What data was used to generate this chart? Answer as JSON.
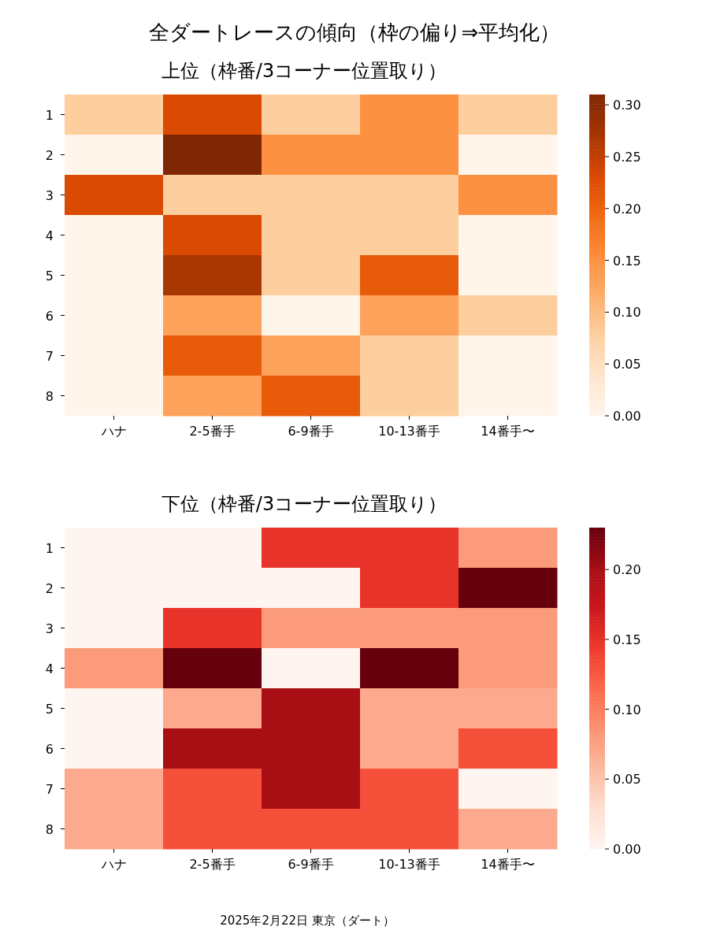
{
  "chart_data": [
    {
      "type": "heatmap",
      "title": "全ダートレースの傾向（枠の偏り⇒平均化）",
      "subtitle": "上位（枠番/3コーナー位置取り）",
      "categories": [
        "ハナ",
        "2-5番手",
        "6-9番手",
        "10-13番手",
        "14番手〜"
      ],
      "y_categories": [
        "1",
        "2",
        "3",
        "4",
        "5",
        "6",
        "7",
        "8"
      ],
      "cells": [
        [
          0.08,
          0.23,
          0.08,
          0.15,
          0.08
        ],
        [
          0,
          0.31,
          0.15,
          0.15,
          0
        ],
        [
          0.23,
          0.08,
          0.08,
          0.08,
          0.15
        ],
        [
          0,
          0.23,
          0.08,
          0.08,
          0
        ],
        [
          0,
          0.27,
          0.08,
          0.21,
          0
        ],
        [
          0,
          0.13,
          0,
          0.13,
          0.08
        ],
        [
          0,
          0.21,
          0.13,
          0.08,
          0
        ],
        [
          0,
          0.13,
          0.21,
          0.08,
          0
        ]
      ],
      "clim": [
        0,
        0.31
      ],
      "cticks": [
        {
          "value": 0,
          "label": "0.00"
        },
        {
          "value": 0.05,
          "label": "0.05"
        },
        {
          "value": 0.1,
          "label": "0.10"
        },
        {
          "value": 0.15,
          "label": "0.15"
        },
        {
          "value": 0.2,
          "label": "0.20"
        },
        {
          "value": 0.25,
          "label": "0.25"
        },
        {
          "value": 0.3,
          "label": "0.30"
        }
      ]
    },
    {
      "type": "heatmap",
      "title": "下位（枠番/3コーナー位置取り）",
      "categories": [
        "ハナ",
        "2-5番手",
        "6-9番手",
        "10-13番手",
        "14番手〜"
      ],
      "y_categories": [
        "1",
        "2",
        "3",
        "4",
        "5",
        "6",
        "7",
        "8"
      ],
      "cells": [
        [
          0,
          0,
          0.15,
          0.15,
          0.08
        ],
        [
          0,
          0,
          0,
          0.15,
          0.23
        ],
        [
          0,
          0.15,
          0.08,
          0.08,
          0.08
        ],
        [
          0.08,
          0.23,
          0,
          0.23,
          0.08
        ],
        [
          0,
          0.07,
          0.2,
          0.07,
          0.07
        ],
        [
          0,
          0.2,
          0.2,
          0.07,
          0.13
        ],
        [
          0.07,
          0.13,
          0.2,
          0.13,
          0
        ],
        [
          0.07,
          0.13,
          0.13,
          0.13,
          0.07
        ]
      ],
      "clim": [
        0,
        0.23
      ],
      "cticks": [
        {
          "value": 0,
          "label": "0.00"
        },
        {
          "value": 0.05,
          "label": "0.05"
        },
        {
          "value": 0.1,
          "label": "0.10"
        },
        {
          "value": 0.15,
          "label": "0.15"
        },
        {
          "value": 0.2,
          "label": "0.20"
        }
      ],
      "annotations": [
        "2025年2月22日 東京（ダート）"
      ]
    }
  ]
}
